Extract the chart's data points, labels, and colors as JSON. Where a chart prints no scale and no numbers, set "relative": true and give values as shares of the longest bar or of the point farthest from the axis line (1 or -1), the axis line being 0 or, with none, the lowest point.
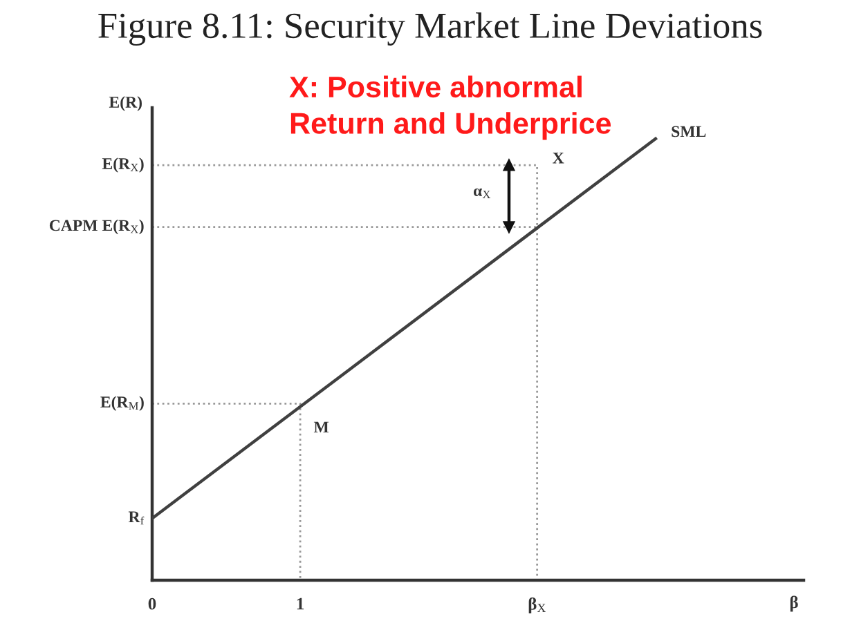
{
  "chart_data": {
    "type": "line",
    "title": "Figure 8.11: Security Market Line Deviations",
    "xlabel": "β",
    "ylabel": "E(R)",
    "relative": true,
    "xlim": [
      0,
      4.4
    ],
    "xticks": [
      0,
      1,
      {
        "value": 2.6,
        "label": "β$_{X}$"
      }
    ],
    "series": [
      {
        "name": "SML",
        "color": "#404040",
        "x": [
          0,
          3.4
        ],
        "values": [
          0.14,
          1.0
        ],
        "line_style": "solid"
      },
      {
        "color": "#999999",
        "x": [
          0,
          2.6,
          2.6
        ],
        "values": [
          0.94,
          0.94,
          0
        ],
        "line_style": "dotted"
      },
      {
        "color": "#999999",
        "x": [
          0,
          2.6
        ],
        "values": [
          0.8,
          0.8
        ],
        "line_style": "dotted"
      },
      {
        "color": "#999999",
        "x": [
          0,
          1,
          1
        ],
        "values": [
          0.4,
          0.4,
          0
        ],
        "line_style": "dotted"
      },
      {
        "color": "#111111",
        "x": [
          2.41,
          2.41
        ],
        "values": [
          0.8,
          0.94
        ],
        "line_style": "solid",
        "marker": "triangle"
      }
    ],
    "annotations": [
      "X: Positive abnormal\nReturn and Underprice",
      {
        "text": "E(R$_{X}$)",
        "x": 0,
        "y": 0.94
      },
      {
        "text": "CAPM E(R$_{X}$)",
        "x": 0,
        "y": 0.8
      },
      {
        "text": "E(R$_{M}$)",
        "x": 0,
        "y": 0.4
      },
      {
        "text": "R$_{f}$",
        "x": 0,
        "y": 0.14
      },
      {
        "text": "X",
        "x": 2.6,
        "y": 0.94
      },
      {
        "text": "M",
        "x": 1,
        "y": 0.4
      },
      {
        "text": "α$_{X}$",
        "x": 2.41,
        "y": 0.87
      }
    ]
  }
}
